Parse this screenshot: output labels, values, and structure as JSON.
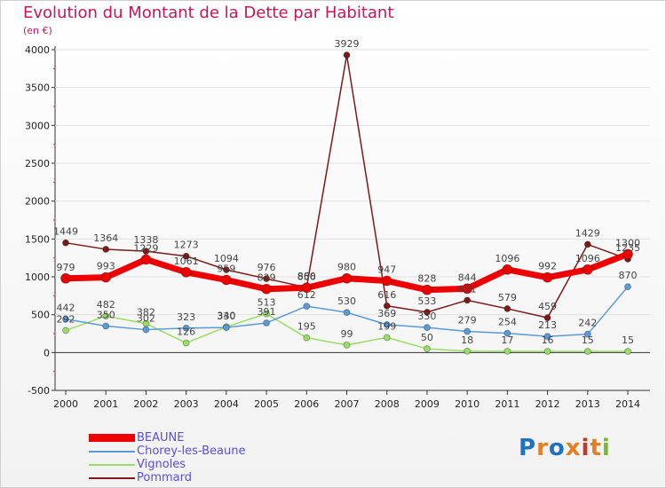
{
  "chart_data": {
    "type": "line",
    "title": "Evolution du Montant de la Dette par Habitant",
    "ylabel": "(en €)",
    "xlabel": "",
    "ylim": [
      -500,
      4000
    ],
    "yticks": [
      -500,
      0,
      500,
      1000,
      1500,
      2000,
      2500,
      3000,
      3500,
      4000
    ],
    "categories": [
      "2000",
      "2001",
      "2002",
      "2003",
      "2004",
      "2005",
      "2006",
      "2007",
      "2008",
      "2009",
      "2010",
      "2011",
      "2012",
      "2013",
      "2014"
    ],
    "series": [
      {
        "name": "BEAUNE",
        "color": "#ee0000",
        "values": [
          979,
          993,
          1229,
          1061,
          959,
          839,
          856,
          980,
          947,
          828,
          844,
          1096,
          992,
          1096,
          1300
        ]
      },
      {
        "name": "Chorey-les-Beaune",
        "color": "#5b9bd5",
        "values": [
          442,
          350,
          302,
          323,
          330,
          391,
          612,
          530,
          369,
          330,
          279,
          254,
          213,
          242,
          870
        ]
      },
      {
        "name": "Vignoles",
        "color": "#99dd66",
        "values": [
          292,
          482,
          382,
          126,
          340,
          513,
          195,
          99,
          199,
          50,
          18,
          17,
          16,
          15,
          15
        ]
      },
      {
        "name": "Pommard",
        "color": "#7a1a1a",
        "values": [
          1449,
          1364,
          1338,
          1273,
          1094,
          976,
          860,
          3929,
          616,
          533,
          691,
          579,
          459,
          1429,
          1235
        ]
      }
    ]
  },
  "logo": {
    "text": "Proxiti"
  }
}
